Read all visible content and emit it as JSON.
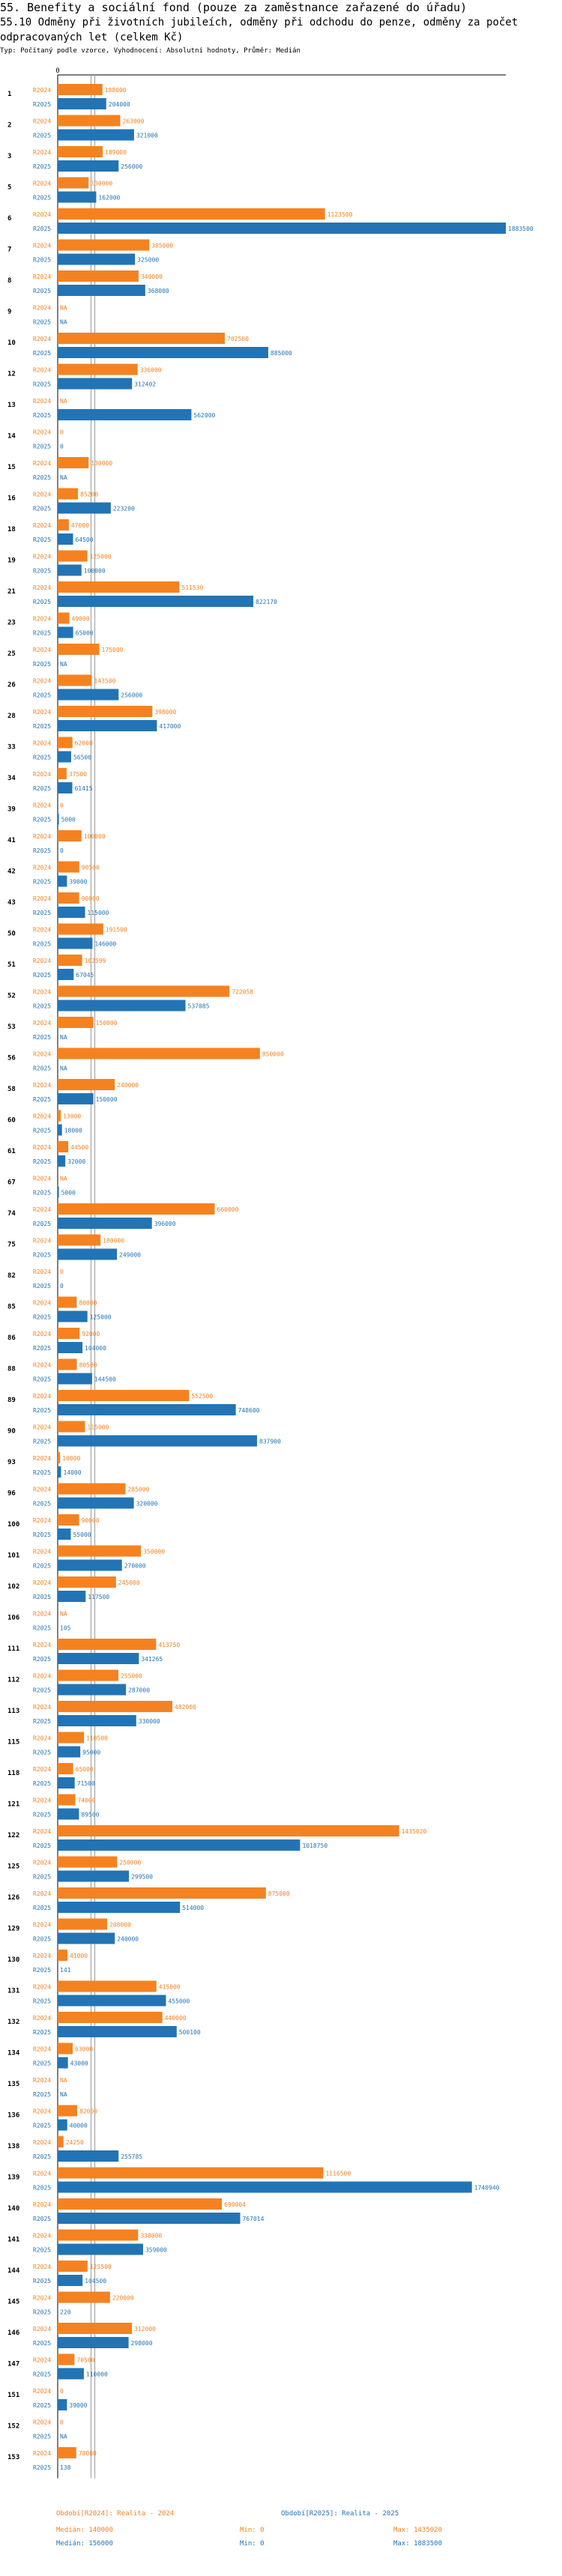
{
  "header": {
    "title": "55. Benefity a sociální fond (pouze za zaměstnance zařazené do úřadu)",
    "subtitle": "55.10 Odměny při životních jubileích, odměny při odchodu do penze, odměny za počet odpracovaných let (celkem Kč)",
    "note": "Typ: Počítaný podle vzorce, Vyhodnocení: Absolutní hodnoty, Průměr: Medián"
  },
  "colors": {
    "r2024": "#f58220",
    "r2025": "#2274b5",
    "axis": "#000000",
    "median": "#999999"
  },
  "chart_data": {
    "type": "bar",
    "orientation": "horizontal",
    "title": "55.10 Odměny při životních jubileích, odměny při odchodu do penze, odměny za počet odpracovaných let (celkem Kč)",
    "xlim": [
      0,
      1883500
    ],
    "axis_tick": "0",
    "series_names": [
      "R2024",
      "R2025"
    ],
    "categories": [
      "1",
      "2",
      "3",
      "5",
      "6",
      "7",
      "8",
      "9",
      "10",
      "12",
      "13",
      "14",
      "15",
      "16",
      "18",
      "19",
      "21",
      "23",
      "25",
      "26",
      "28",
      "33",
      "34",
      "39",
      "41",
      "42",
      "43",
      "50",
      "51",
      "52",
      "53",
      "56",
      "58",
      "60",
      "61",
      "67",
      "74",
      "75",
      "82",
      "85",
      "86",
      "88",
      "89",
      "90",
      "93",
      "96",
      "100",
      "101",
      "102",
      "106",
      "111",
      "112",
      "113",
      "115",
      "118",
      "121",
      "122",
      "125",
      "126",
      "129",
      "130",
      "131",
      "132",
      "134",
      "135",
      "136",
      "138",
      "139",
      "140",
      "141",
      "144",
      "145",
      "146",
      "147",
      "151",
      "152",
      "153"
    ],
    "series": [
      {
        "name": "R2024",
        "values": [
          188000,
          263000,
          189000,
          130000,
          1123500,
          385000,
          340000,
          null,
          702500,
          336000,
          null,
          0,
          130000,
          85200,
          47000,
          125000,
          511530,
          49000,
          175000,
          143500,
          398000,
          62000,
          37500,
          0,
          100000,
          90500,
          90000,
          191500,
          102599,
          722058,
          150000,
          850000,
          240000,
          13000,
          44500,
          null,
          660000,
          180000,
          0,
          80000,
          92000,
          80500,
          552500,
          115000,
          10000,
          285000,
          90000,
          350000,
          245000,
          null,
          413750,
          255000,
          482000,
          110500,
          65000,
          74000,
          1435020,
          250000,
          875000,
          208000,
          41000,
          415000,
          440000,
          63000,
          null,
          82000,
          24250,
          1116500,
          690004,
          338000,
          125500,
          220000,
          312000,
          70500,
          0,
          0,
          78000
        ]
      },
      {
        "name": "R2025",
        "values": [
          204000,
          321000,
          256000,
          162000,
          1883500,
          325000,
          368000,
          null,
          885000,
          312402,
          562000,
          0,
          null,
          223200,
          64500,
          100000,
          822170,
          65000,
          null,
          256000,
          417000,
          56500,
          61415,
          5000,
          0,
          39000,
          115000,
          146000,
          67045,
          537085,
          null,
          null,
          150000,
          18000,
          32000,
          5000,
          396000,
          249000,
          0,
          125000,
          104000,
          144500,
          748600,
          837900,
          14000,
          320000,
          55000,
          270000,
          117500,
          105,
          341265,
          287000,
          330000,
          95000,
          71500,
          89500,
          1018750,
          299500,
          514000,
          240000,
          141,
          455000,
          500100,
          43000,
          null,
          40000,
          255785,
          1740940,
          767014,
          359000,
          104500,
          220,
          298000,
          110000,
          39000,
          null,
          138
        ]
      }
    ],
    "value_labels_2024": [
      "188000",
      "263000",
      "189000",
      "130000",
      "1123500",
      "385000",
      "340000",
      "NA",
      "702500",
      "336000",
      "NA",
      "0",
      "130000",
      "85200",
      "47000",
      "125000",
      "511530",
      "49000",
      "175000",
      "143500",
      "398000",
      "62000",
      "37500",
      "0",
      "100000",
      "90500",
      "90000",
      "191500",
      "102599",
      "722058",
      "150000",
      "850000",
      "240000",
      "13000",
      "44500",
      "NA",
      "660000",
      "180000",
      "0",
      "80000",
      "92000",
      "80500",
      "552500",
      "115000",
      "10000",
      "285000",
      "90000",
      "350000",
      "245000",
      "NA",
      "413750",
      "255000",
      "482000",
      "110500",
      "65000",
      "74000",
      "1435020",
      "250000",
      "875000",
      "208000",
      "41000",
      "415000",
      "440000",
      "63000",
      "NA",
      "82000",
      "24250",
      "1116500",
      "690004",
      "338000",
      "125500",
      "220000",
      "312000",
      "70500",
      "0",
      "0",
      "78000"
    ],
    "value_labels_2025": [
      "204000",
      "321000",
      "256000",
      "162000",
      "1883500",
      "325000",
      "368000",
      "NA",
      "885000",
      "312402",
      "562000",
      "0",
      "NA",
      "223200",
      "64500",
      "100000",
      "822170",
      "65000",
      "NA",
      "256000",
      "417000",
      "56500",
      "61415",
      "5000",
      "0",
      "39000",
      "115000",
      "146000",
      "67045",
      "537085",
      "NA",
      "NA",
      "150000",
      "18000",
      "32000",
      "5000",
      "396000",
      "249000",
      "0",
      "125000",
      "104000",
      "144500",
      "748600",
      "837900",
      "14000",
      "320000",
      "55000",
      "270000",
      "117500",
      "105",
      "341265",
      "287000",
      "330000",
      "95000",
      "71500",
      "89500",
      "1018750",
      "299500",
      "514000",
      "240000",
      "141",
      "455000",
      "500100",
      "43000",
      "NA",
      "40000",
      "255785",
      "1740940",
      "767014",
      "359000",
      "104500",
      "220",
      "298000",
      "110000",
      "39000",
      "NA",
      "138"
    ],
    "median_2024": 140000,
    "median_2025": 156000
  },
  "legend": {
    "r2024_label": "Období[R2024]: Realita - 2024",
    "r2025_label": "Období[R2025]: Realita - 2025",
    "median_2024": "Medián: 140000",
    "median_2025": "Medián: 156000",
    "min_2024": "Min: 0",
    "min_2025": "Min: 0",
    "max_2024": "Max: 1435020",
    "max_2025": "Max: 1883500"
  }
}
